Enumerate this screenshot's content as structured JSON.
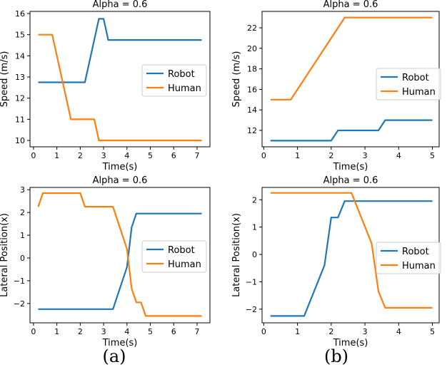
{
  "colors": {
    "robot": "#1f77b4",
    "human": "#ff7f0e"
  },
  "captions": [
    "(a)",
    "(b)"
  ],
  "chart_data": [
    {
      "type": "line",
      "title": "Alpha = 0.6",
      "xlabel": "Time(s)",
      "ylabel": "Speed (m/s)",
      "xlim": [
        -0.15,
        7.55
      ],
      "ylim": [
        9.7,
        16.1
      ],
      "xticks": [
        0,
        1,
        2,
        3,
        4,
        5,
        6,
        7
      ],
      "yticks": [
        10,
        11,
        12,
        13,
        14,
        15,
        16
      ],
      "legend": "right",
      "series": [
        {
          "name": "Robot",
          "color": "#1f77b4",
          "x": [
            0.2,
            2.2,
            2.8,
            3.0,
            3.2,
            7.2
          ],
          "y": [
            12.75,
            12.75,
            15.75,
            15.75,
            14.75,
            14.75
          ]
        },
        {
          "name": "Human",
          "color": "#ff7f0e",
          "x": [
            0.2,
            0.8,
            1.6,
            2.6,
            2.8,
            7.2
          ],
          "y": [
            15.0,
            15.0,
            11.0,
            11.0,
            10.0,
            10.0
          ]
        }
      ]
    },
    {
      "type": "line",
      "title": "Alpha = 0.6",
      "xlabel": "Time(s)",
      "ylabel": "Speed (m/s)",
      "xlim": [
        -0.05,
        5.2
      ],
      "ylim": [
        10.4,
        23.6
      ],
      "xticks": [
        0,
        1,
        2,
        3,
        4,
        5
      ],
      "yticks": [
        12,
        14,
        16,
        18,
        20,
        22
      ],
      "legend": "right",
      "series": [
        {
          "name": "Robot",
          "color": "#1f77b4",
          "x": [
            0.2,
            2.0,
            2.2,
            3.4,
            3.6,
            5.0
          ],
          "y": [
            11.0,
            11.0,
            12.0,
            12.0,
            13.0,
            13.0
          ]
        },
        {
          "name": "Human",
          "color": "#ff7f0e",
          "x": [
            0.2,
            0.8,
            2.4,
            5.0
          ],
          "y": [
            15.0,
            15.0,
            23.0,
            23.0
          ]
        }
      ]
    },
    {
      "type": "line",
      "title": "Alpha = 0.6",
      "xlabel": "Time(s)",
      "ylabel": "Lateral Position(x)",
      "xlim": [
        -0.15,
        7.55
      ],
      "ylim": [
        -2.85,
        3.1
      ],
      "xticks": [
        0,
        1,
        2,
        3,
        4,
        5,
        6,
        7
      ],
      "yticks": [
        -2,
        -1,
        0,
        1,
        2,
        3
      ],
      "ytick_labels": [
        "−2",
        "−1",
        "0",
        "1",
        "2",
        "3"
      ],
      "legend": "right",
      "series": [
        {
          "name": "Robot",
          "color": "#1f77b4",
          "x": [
            0.2,
            3.4,
            4.0,
            4.2,
            4.4,
            7.2
          ],
          "y": [
            -2.25,
            -2.25,
            -0.4,
            1.35,
            1.95,
            1.95
          ]
        },
        {
          "name": "Human",
          "color": "#ff7f0e",
          "x": [
            0.2,
            0.4,
            2.0,
            2.2,
            3.4,
            4.0,
            4.2,
            4.4,
            4.6,
            4.8,
            7.2
          ],
          "y": [
            2.25,
            2.85,
            2.85,
            2.25,
            2.25,
            0.4,
            -1.35,
            -1.95,
            -1.95,
            -2.55,
            -2.55
          ]
        }
      ]
    },
    {
      "type": "line",
      "title": "Alpha = 0.6",
      "xlabel": "Time(s)",
      "ylabel": "Lateral Position(x)",
      "xlim": [
        -0.05,
        5.2
      ],
      "ylim": [
        -2.5,
        2.45
      ],
      "xticks": [
        0,
        1,
        2,
        3,
        4,
        5
      ],
      "yticks": [
        -2,
        -1,
        0,
        1,
        2
      ],
      "ytick_labels": [
        "−2",
        "−1",
        "0",
        "1",
        "2"
      ],
      "legend": "right",
      "series": [
        {
          "name": "Robot",
          "color": "#1f77b4",
          "x": [
            0.2,
            1.2,
            1.8,
            2.0,
            2.2,
            2.4,
            5.0
          ],
          "y": [
            -2.25,
            -2.25,
            -0.4,
            1.35,
            1.35,
            1.95,
            1.95
          ]
        },
        {
          "name": "Human",
          "color": "#ff7f0e",
          "x": [
            0.2,
            2.6,
            3.2,
            3.4,
            3.6,
            5.0
          ],
          "y": [
            2.25,
            2.25,
            0.4,
            -1.35,
            -1.95,
            -1.95
          ]
        }
      ]
    }
  ]
}
